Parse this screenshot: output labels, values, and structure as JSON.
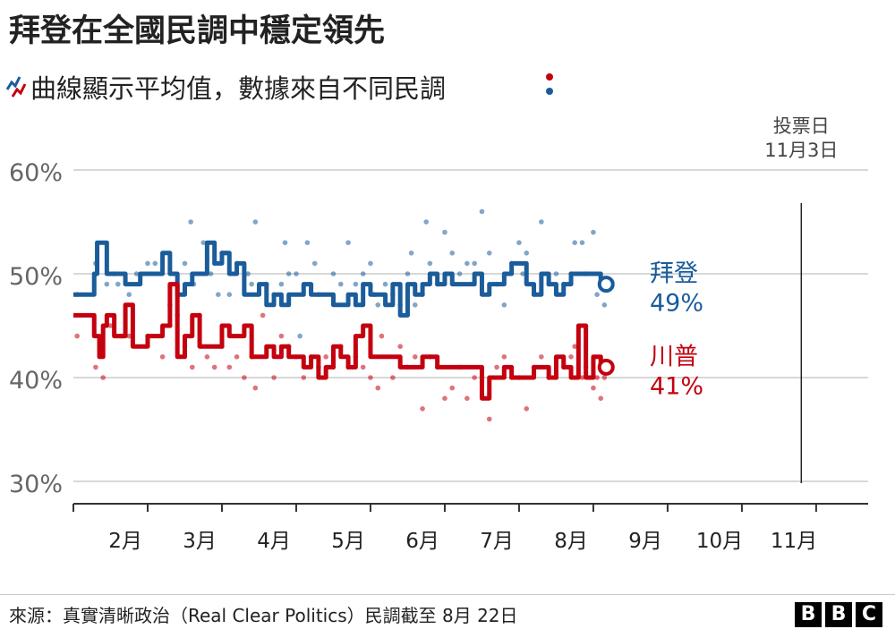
{
  "title": "拜登在全國民調中穩定領先",
  "subtitle": "曲線顯示平均值，數據來自不同民調",
  "legend_icons": [
    "trend-lines-icon",
    "poll-dots-icon"
  ],
  "source": "來源：真實清晰政治（Real Clear Politics）民調截至 8月 22日",
  "logo": [
    "B",
    "B",
    "C"
  ],
  "colors": {
    "biden": "#1b5c9b",
    "trump": "#c4000f",
    "grid": "#cccccc",
    "text": "#666666"
  },
  "chart_data": {
    "type": "line",
    "title": "拜登在全國民調中穩定領先",
    "xlabel": "",
    "ylabel": "",
    "ylim": [
      30,
      60
    ],
    "xlim": [
      0,
      10.7
    ],
    "y_ticks": [
      "30%",
      "40%",
      "50%",
      "60%"
    ],
    "y_tick_values": [
      30,
      40,
      50,
      60
    ],
    "x_ticks": [
      "2月",
      "3月",
      "4月",
      "5月",
      "6月",
      "7月",
      "8月",
      "9月",
      "10月",
      "11月"
    ],
    "x_tick_values": [
      0.7,
      1.7,
      2.7,
      3.7,
      4.7,
      5.7,
      6.7,
      7.7,
      8.7,
      9.7
    ],
    "annotation": {
      "label_line1": "投票日",
      "label_line2": "11月3日",
      "x": 9.8
    },
    "series": [
      {
        "name": "拜登",
        "end_label": "49%",
        "x": [
          0,
          0.15,
          0.28,
          0.32,
          0.35,
          0.45,
          0.55,
          0.7,
          0.8,
          0.9,
          1.0,
          1.1,
          1.2,
          1.3,
          1.4,
          1.5,
          1.6,
          1.7,
          1.8,
          1.9,
          2.0,
          2.1,
          2.2,
          2.3,
          2.4,
          2.5,
          2.6,
          2.7,
          2.8,
          2.9,
          3.0,
          3.1,
          3.2,
          3.3,
          3.4,
          3.5,
          3.6,
          3.7,
          3.8,
          3.9,
          4.0,
          4.1,
          4.2,
          4.3,
          4.4,
          4.5,
          4.6,
          4.7,
          4.8,
          4.9,
          5.0,
          5.1,
          5.2,
          5.3,
          5.4,
          5.5,
          5.6,
          5.7,
          5.8,
          5.9,
          6.0,
          6.1,
          6.2,
          6.3,
          6.4,
          6.5,
          6.6,
          6.7,
          6.8,
          6.9,
          7.0,
          7.1
        ],
        "values": [
          48,
          48,
          50,
          53,
          53,
          50,
          50,
          49,
          49,
          50,
          50,
          50,
          52,
          50,
          48,
          49,
          50,
          50,
          53,
          51,
          52,
          50,
          51,
          48,
          48,
          49,
          47,
          48,
          47,
          48,
          48,
          49,
          48,
          48,
          48,
          47,
          47,
          48,
          47,
          49,
          48,
          48,
          47,
          49,
          46,
          49,
          48,
          49,
          50,
          49,
          50,
          49,
          49,
          49,
          50,
          48,
          49,
          49,
          50,
          51,
          51,
          49,
          48,
          50,
          49,
          48,
          49,
          50,
          50,
          50,
          50,
          49
        ]
      },
      {
        "name": "川普",
        "end_label": "41%",
        "x": [
          0,
          0.15,
          0.28,
          0.35,
          0.4,
          0.45,
          0.55,
          0.6,
          0.7,
          0.8,
          0.9,
          1.0,
          1.1,
          1.2,
          1.3,
          1.4,
          1.5,
          1.6,
          1.7,
          1.8,
          1.9,
          2.0,
          2.1,
          2.2,
          2.3,
          2.4,
          2.5,
          2.6,
          2.7,
          2.8,
          2.9,
          3.0,
          3.1,
          3.2,
          3.3,
          3.4,
          3.5,
          3.6,
          3.7,
          3.8,
          3.9,
          4.0,
          4.1,
          4.2,
          4.3,
          4.4,
          4.5,
          4.6,
          4.7,
          4.8,
          4.9,
          5.0,
          5.1,
          5.2,
          5.3,
          5.4,
          5.5,
          5.6,
          5.7,
          5.8,
          5.9,
          6.0,
          6.1,
          6.2,
          6.3,
          6.4,
          6.5,
          6.6,
          6.7,
          6.8,
          6.9,
          7.0,
          7.1
        ],
        "values": [
          46,
          46,
          44,
          42,
          45,
          46,
          44,
          44,
          47,
          43,
          43,
          44,
          44,
          45,
          49,
          42,
          44,
          46,
          43,
          43,
          43,
          45,
          44,
          44,
          45,
          42,
          42,
          43,
          42,
          43,
          42,
          42,
          41,
          42,
          40,
          41,
          43,
          42,
          41,
          44,
          45,
          42,
          42,
          42,
          42,
          41,
          41,
          41,
          42,
          42,
          41,
          41,
          41,
          41,
          41,
          41,
          38,
          40,
          40,
          41,
          40,
          40,
          40,
          41,
          41,
          40,
          42,
          41,
          40,
          45,
          40,
          42,
          41
        ]
      }
    ],
    "biden_polls": [
      [
        0.05,
        48
      ],
      [
        0.3,
        51
      ],
      [
        0.45,
        49
      ],
      [
        0.55,
        50
      ],
      [
        0.6,
        49
      ],
      [
        0.75,
        48
      ],
      [
        0.85,
        50
      ],
      [
        1.0,
        51
      ],
      [
        1.1,
        51
      ],
      [
        1.3,
        47
      ],
      [
        1.5,
        51
      ],
      [
        1.58,
        55
      ],
      [
        1.62,
        49
      ],
      [
        1.75,
        53
      ],
      [
        1.85,
        50
      ],
      [
        1.9,
        51
      ],
      [
        1.95,
        48
      ],
      [
        2.0,
        52
      ],
      [
        2.05,
        52
      ],
      [
        2.1,
        48
      ],
      [
        2.2,
        51
      ],
      [
        2.35,
        50
      ],
      [
        2.4,
        49
      ],
      [
        2.45,
        55
      ],
      [
        2.6,
        49
      ],
      [
        2.7,
        48
      ],
      [
        2.8,
        49
      ],
      [
        2.85,
        53
      ],
      [
        2.9,
        50
      ],
      [
        3.0,
        50
      ],
      [
        3.05,
        44
      ],
      [
        3.15,
        53
      ],
      [
        3.25,
        51
      ],
      [
        3.3,
        48
      ],
      [
        3.5,
        50
      ],
      [
        3.6,
        49
      ],
      [
        3.7,
        53
      ],
      [
        3.8,
        49
      ],
      [
        3.9,
        50
      ],
      [
        4.0,
        51
      ],
      [
        4.05,
        48
      ],
      [
        4.1,
        47
      ],
      [
        4.2,
        49
      ],
      [
        4.3,
        48
      ],
      [
        4.4,
        47
      ],
      [
        4.5,
        50
      ],
      [
        4.55,
        52
      ],
      [
        4.6,
        47
      ],
      [
        4.7,
        48
      ],
      [
        4.75,
        55
      ],
      [
        4.8,
        51
      ],
      [
        4.9,
        49
      ],
      [
        5.0,
        54
      ],
      [
        5.1,
        52
      ],
      [
        5.2,
        50
      ],
      [
        5.3,
        51
      ],
      [
        5.4,
        51
      ],
      [
        5.5,
        56
      ],
      [
        5.6,
        52
      ],
      [
        5.7,
        49
      ],
      [
        5.8,
        47
      ],
      [
        5.9,
        51
      ],
      [
        6.0,
        53
      ],
      [
        6.05,
        50
      ],
      [
        6.1,
        52
      ],
      [
        6.2,
        48
      ],
      [
        6.3,
        55
      ],
      [
        6.4,
        49
      ],
      [
        6.5,
        50
      ],
      [
        6.6,
        49
      ],
      [
        6.7,
        50
      ],
      [
        6.75,
        53
      ],
      [
        6.85,
        53
      ],
      [
        6.9,
        50
      ],
      [
        7.0,
        54
      ],
      [
        7.05,
        48
      ],
      [
        7.1,
        49
      ],
      [
        7.15,
        47
      ]
    ],
    "trump_polls": [
      [
        0.05,
        44
      ],
      [
        0.3,
        41
      ],
      [
        0.4,
        40
      ],
      [
        0.5,
        45
      ],
      [
        0.65,
        44
      ],
      [
        0.75,
        44
      ],
      [
        1.0,
        44
      ],
      [
        1.2,
        42
      ],
      [
        1.3,
        45
      ],
      [
        1.4,
        46
      ],
      [
        1.5,
        43
      ],
      [
        1.6,
        41
      ],
      [
        1.7,
        46
      ],
      [
        1.8,
        42
      ],
      [
        1.9,
        41
      ],
      [
        2.0,
        43
      ],
      [
        2.1,
        41
      ],
      [
        2.2,
        42
      ],
      [
        2.3,
        40
      ],
      [
        2.4,
        42
      ],
      [
        2.45,
        39
      ],
      [
        2.55,
        46
      ],
      [
        2.7,
        40
      ],
      [
        2.8,
        44
      ],
      [
        2.9,
        43
      ],
      [
        3.0,
        42
      ],
      [
        3.1,
        40
      ],
      [
        3.2,
        42
      ],
      [
        3.3,
        41
      ],
      [
        3.4,
        42
      ],
      [
        3.5,
        41
      ],
      [
        3.6,
        43
      ],
      [
        3.7,
        41
      ],
      [
        3.8,
        42
      ],
      [
        3.9,
        41
      ],
      [
        4.0,
        40
      ],
      [
        4.1,
        39
      ],
      [
        4.15,
        44
      ],
      [
        4.3,
        40
      ],
      [
        4.4,
        43
      ],
      [
        4.5,
        41
      ],
      [
        4.6,
        42
      ],
      [
        4.7,
        37
      ],
      [
        4.8,
        42
      ],
      [
        4.9,
        41
      ],
      [
        5.0,
        38
      ],
      [
        5.1,
        39
      ],
      [
        5.2,
        41
      ],
      [
        5.3,
        38
      ],
      [
        5.4,
        40
      ],
      [
        5.5,
        40
      ],
      [
        5.6,
        36
      ],
      [
        5.7,
        41
      ],
      [
        5.8,
        42
      ],
      [
        5.9,
        40
      ],
      [
        6.0,
        40
      ],
      [
        6.1,
        37
      ],
      [
        6.2,
        41
      ],
      [
        6.3,
        42
      ],
      [
        6.4,
        40
      ],
      [
        6.5,
        40
      ],
      [
        6.6,
        41
      ],
      [
        6.7,
        42
      ],
      [
        6.75,
        43
      ],
      [
        6.85,
        40
      ],
      [
        6.9,
        41
      ],
      [
        7.0,
        39
      ],
      [
        7.05,
        40
      ],
      [
        7.1,
        38
      ],
      [
        7.15,
        40
      ]
    ]
  }
}
